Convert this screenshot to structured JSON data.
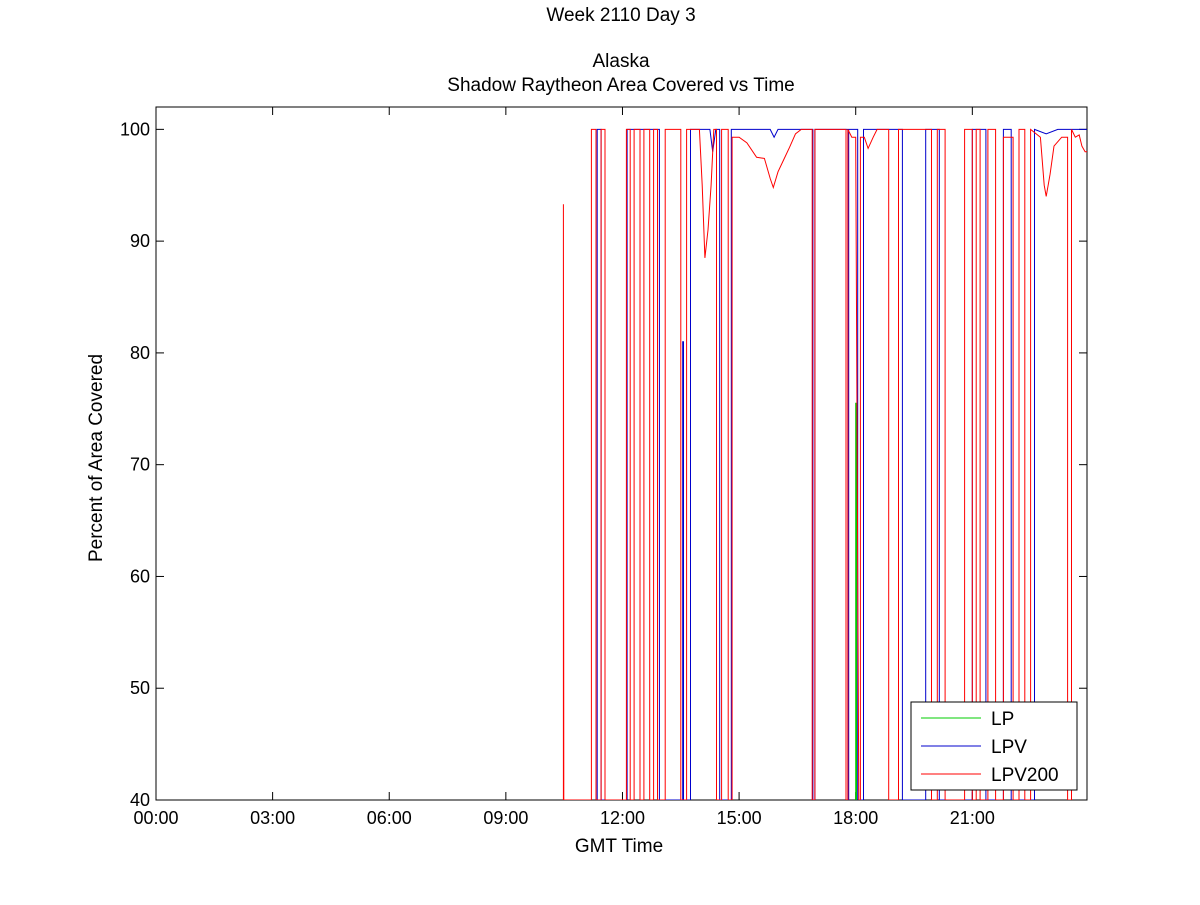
{
  "chart_data": {
    "type": "line",
    "title_lines": [
      "Week 2110 Day 3",
      "Alaska",
      "Shadow Raytheon Area Covered vs Time"
    ],
    "xlabel": "GMT Time",
    "ylabel": "Percent of Area Covered",
    "x_unit": "hours",
    "xlim": [
      0,
      23.95
    ],
    "ylim": [
      40,
      102
    ],
    "x_ticks": [
      {
        "value": 0,
        "label": "00:00"
      },
      {
        "value": 3,
        "label": "03:00"
      },
      {
        "value": 6,
        "label": "06:00"
      },
      {
        "value": 9,
        "label": "09:00"
      },
      {
        "value": 12,
        "label": "12:00"
      },
      {
        "value": 15,
        "label": "15:00"
      },
      {
        "value": 18,
        "label": "18:00"
      },
      {
        "value": 21,
        "label": "21:00"
      }
    ],
    "y_ticks": [
      {
        "value": 40,
        "label": "40"
      },
      {
        "value": 50,
        "label": "50"
      },
      {
        "value": 60,
        "label": "60"
      },
      {
        "value": 70,
        "label": "70"
      },
      {
        "value": 80,
        "label": "80"
      },
      {
        "value": 90,
        "label": "90"
      },
      {
        "value": 100,
        "label": "100"
      }
    ],
    "grid": false,
    "legend_position": "bottom-right",
    "series": [
      {
        "name": "LP",
        "color": "#00cc00",
        "points": [
          [
            18.0,
            40
          ],
          [
            18.0,
            75.5
          ],
          [
            18.02,
            75.5
          ],
          [
            18.02,
            40
          ]
        ]
      },
      {
        "name": "LPV",
        "color": "#0000cc",
        "points": [
          [
            11.35,
            40
          ],
          [
            11.35,
            100
          ],
          [
            11.45,
            100
          ],
          [
            11.45,
            40
          ],
          [
            12.12,
            40
          ],
          [
            12.12,
            100
          ],
          [
            12.95,
            100
          ],
          [
            12.95,
            40
          ],
          [
            13.55,
            40
          ],
          [
            13.55,
            81
          ],
          [
            13.57,
            81
          ],
          [
            13.57,
            40
          ],
          [
            13.75,
            40
          ],
          [
            13.75,
            100
          ],
          [
            14.25,
            100
          ],
          [
            14.32,
            98
          ],
          [
            14.4,
            100
          ],
          [
            14.5,
            100
          ],
          [
            14.5,
            40
          ],
          [
            14.8,
            40
          ],
          [
            14.8,
            100
          ],
          [
            15.8,
            100
          ],
          [
            15.9,
            99.3
          ],
          [
            16.0,
            100
          ],
          [
            16.9,
            100
          ],
          [
            16.9,
            40
          ],
          [
            16.95,
            40
          ],
          [
            16.95,
            100
          ],
          [
            17.8,
            100
          ],
          [
            17.8,
            40
          ],
          [
            17.82,
            40
          ],
          [
            17.82,
            100
          ],
          [
            18.05,
            100
          ],
          [
            18.05,
            40
          ],
          [
            18.2,
            40
          ],
          [
            18.2,
            100
          ],
          [
            19.2,
            100
          ],
          [
            19.2,
            40
          ],
          [
            19.8,
            40
          ],
          [
            19.8,
            100
          ],
          [
            20.15,
            100
          ],
          [
            20.15,
            40
          ],
          [
            21.0,
            40
          ],
          [
            21.0,
            100
          ],
          [
            21.35,
            100
          ],
          [
            21.35,
            40
          ],
          [
            21.8,
            40
          ],
          [
            21.8,
            100
          ],
          [
            22.0,
            100
          ],
          [
            22.0,
            40
          ],
          [
            22.6,
            40
          ],
          [
            22.6,
            100
          ],
          [
            22.9,
            99.6
          ],
          [
            23.2,
            100
          ],
          [
            23.95,
            100
          ]
        ]
      },
      {
        "name": "LPV200",
        "color": "#ff0000",
        "points": [
          [
            10.48,
            40
          ],
          [
            10.48,
            93.3
          ],
          [
            10.49,
            40
          ],
          [
            11.2,
            40
          ],
          [
            11.2,
            100
          ],
          [
            11.32,
            100
          ],
          [
            11.32,
            40
          ],
          [
            11.45,
            40
          ],
          [
            11.45,
            100
          ],
          [
            11.55,
            100
          ],
          [
            11.55,
            40
          ],
          [
            12.1,
            40
          ],
          [
            12.1,
            100
          ],
          [
            12.2,
            100
          ],
          [
            12.2,
            40
          ],
          [
            12.3,
            40
          ],
          [
            12.3,
            100
          ],
          [
            12.45,
            100
          ],
          [
            12.45,
            40
          ],
          [
            12.55,
            40
          ],
          [
            12.55,
            100
          ],
          [
            12.7,
            100
          ],
          [
            12.7,
            40
          ],
          [
            12.8,
            40
          ],
          [
            12.8,
            100
          ],
          [
            12.9,
            100
          ],
          [
            12.9,
            40
          ],
          [
            13.1,
            40
          ],
          [
            13.1,
            100
          ],
          [
            13.5,
            100
          ],
          [
            13.5,
            40
          ],
          [
            13.65,
            40
          ],
          [
            13.65,
            100
          ],
          [
            13.98,
            100
          ],
          [
            14.05,
            95
          ],
          [
            14.12,
            88.5
          ],
          [
            14.2,
            91
          ],
          [
            14.28,
            95
          ],
          [
            14.35,
            100
          ],
          [
            14.42,
            100
          ],
          [
            14.42,
            40
          ],
          [
            14.55,
            40
          ],
          [
            14.55,
            100
          ],
          [
            14.72,
            100
          ],
          [
            14.72,
            40
          ],
          [
            14.82,
            40
          ],
          [
            14.82,
            99.3
          ],
          [
            15.0,
            99.3
          ],
          [
            15.2,
            98.8
          ],
          [
            15.45,
            97.5
          ],
          [
            15.65,
            97.4
          ],
          [
            15.8,
            95.6
          ],
          [
            15.88,
            94.8
          ],
          [
            16.0,
            96.2
          ],
          [
            16.15,
            97.3
          ],
          [
            16.3,
            98.4
          ],
          [
            16.45,
            99.6
          ],
          [
            16.6,
            100
          ],
          [
            16.88,
            100
          ],
          [
            16.88,
            40
          ],
          [
            16.95,
            40
          ],
          [
            16.95,
            100
          ],
          [
            17.75,
            100
          ],
          [
            17.75,
            40
          ],
          [
            17.8,
            40
          ],
          [
            17.8,
            100
          ],
          [
            17.9,
            99.3
          ],
          [
            18.0,
            99.3
          ],
          [
            18.08,
            40
          ],
          [
            18.12,
            40
          ],
          [
            18.12,
            99.3
          ],
          [
            18.22,
            99.3
          ],
          [
            18.32,
            98.3
          ],
          [
            18.45,
            99.3
          ],
          [
            18.55,
            100
          ],
          [
            18.85,
            100
          ],
          [
            18.85,
            40
          ],
          [
            19.1,
            40
          ],
          [
            19.1,
            100
          ],
          [
            19.95,
            100
          ],
          [
            19.95,
            40
          ],
          [
            20.1,
            40
          ],
          [
            20.1,
            100
          ],
          [
            20.3,
            100
          ],
          [
            20.3,
            40
          ],
          [
            20.8,
            40
          ],
          [
            20.8,
            100
          ],
          [
            21.0,
            100
          ],
          [
            21.0,
            40
          ],
          [
            21.1,
            40
          ],
          [
            21.1,
            100
          ],
          [
            21.2,
            100
          ],
          [
            21.2,
            40
          ],
          [
            21.4,
            40
          ],
          [
            21.4,
            100
          ],
          [
            21.6,
            100
          ],
          [
            21.6,
            40
          ],
          [
            21.8,
            40
          ],
          [
            21.8,
            99.3
          ],
          [
            22.05,
            99.3
          ],
          [
            22.05,
            40
          ],
          [
            22.2,
            40
          ],
          [
            22.2,
            100
          ],
          [
            22.35,
            100
          ],
          [
            22.35,
            40
          ],
          [
            22.5,
            40
          ],
          [
            22.5,
            100
          ],
          [
            22.75,
            99.3
          ],
          [
            22.85,
            95
          ],
          [
            22.9,
            94
          ],
          [
            23.0,
            96
          ],
          [
            23.1,
            98.5
          ],
          [
            23.3,
            99.3
          ],
          [
            23.45,
            99.3
          ],
          [
            23.45,
            40
          ],
          [
            23.55,
            40
          ],
          [
            23.55,
            100
          ],
          [
            23.65,
            99.3
          ],
          [
            23.75,
            99.5
          ],
          [
            23.82,
            98.5
          ],
          [
            23.9,
            98
          ],
          [
            23.95,
            98
          ]
        ]
      }
    ]
  }
}
